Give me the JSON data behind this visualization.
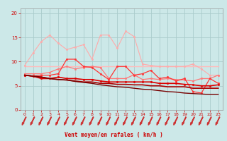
{
  "xlabel": "Vent moyen/en rafales ( km/h )",
  "background_color": "#cce8e8",
  "grid_color": "#aacccc",
  "x": [
    0,
    1,
    2,
    3,
    4,
    5,
    6,
    7,
    8,
    9,
    10,
    11,
    12,
    13,
    14,
    15,
    16,
    17,
    18,
    19,
    20,
    21,
    22,
    23
  ],
  "series": [
    {
      "y": [
        9.0,
        9.0,
        9.0,
        9.0,
        9.0,
        9.0,
        9.0,
        9.0,
        9.0,
        9.0,
        9.0,
        9.0,
        9.0,
        9.0,
        9.0,
        9.0,
        9.0,
        9.0,
        9.0,
        9.0,
        9.0,
        9.0,
        9.0,
        9.0
      ],
      "color": "#ffbbbb",
      "lw": 1.0,
      "marker": null
    },
    {
      "y": [
        9.2,
        11.8,
        14.2,
        15.5,
        13.8,
        12.5,
        13.0,
        13.5,
        10.5,
        15.5,
        15.5,
        12.8,
        16.3,
        15.2,
        9.5,
        9.2,
        9.0,
        9.0,
        9.0,
        9.0,
        9.5,
        8.5,
        7.2,
        7.2
      ],
      "color": "#ffaaaa",
      "lw": 0.8,
      "marker": "o",
      "markersize": 1.8
    },
    {
      "y": [
        7.5,
        7.5,
        7.5,
        7.8,
        8.5,
        9.0,
        8.5,
        8.8,
        9.0,
        8.8,
        6.5,
        6.5,
        6.5,
        7.3,
        6.3,
        6.5,
        6.3,
        6.5,
        6.3,
        6.2,
        6.0,
        6.5,
        6.5,
        7.2
      ],
      "color": "#ff7777",
      "lw": 0.9,
      "marker": "o",
      "markersize": 1.8
    },
    {
      "y": [
        7.2,
        7.0,
        7.2,
        7.2,
        7.5,
        10.5,
        10.5,
        9.0,
        8.8,
        7.5,
        6.3,
        9.0,
        9.0,
        7.2,
        7.5,
        8.2,
        6.5,
        6.8,
        6.0,
        6.5,
        3.8,
        3.5,
        6.5,
        5.5
      ],
      "color": "#ff3333",
      "lw": 0.9,
      "marker": "o",
      "markersize": 1.8
    },
    {
      "y": [
        7.2,
        7.0,
        6.5,
        6.5,
        6.8,
        6.5,
        6.5,
        6.3,
        6.3,
        6.0,
        5.8,
        5.8,
        5.8,
        5.8,
        5.8,
        5.8,
        5.5,
        5.5,
        5.5,
        5.3,
        5.2,
        5.0,
        5.0,
        5.2
      ],
      "color": "#dd0000",
      "lw": 1.2,
      "marker": "o",
      "markersize": 1.8
    },
    {
      "y": [
        7.2,
        7.0,
        6.8,
        6.5,
        6.3,
        6.2,
        6.0,
        5.8,
        5.8,
        5.5,
        5.5,
        5.3,
        5.3,
        5.2,
        5.2,
        5.0,
        5.0,
        4.8,
        4.8,
        4.8,
        4.5,
        4.5,
        4.5,
        4.5
      ],
      "color": "#aa0000",
      "lw": 1.2,
      "marker": null
    },
    {
      "y": [
        7.2,
        7.0,
        6.8,
        6.5,
        6.3,
        6.2,
        5.9,
        5.7,
        5.5,
        5.2,
        5.0,
        4.8,
        4.7,
        4.5,
        4.3,
        4.2,
        4.0,
        3.8,
        3.7,
        3.5,
        3.4,
        3.3,
        3.2,
        3.2
      ],
      "color": "#770000",
      "lw": 1.0,
      "marker": null
    }
  ],
  "arrow_color": "#cc3333",
  "ylim": [
    0,
    21
  ],
  "xlim": [
    -0.5,
    23.5
  ],
  "yticks": [
    0,
    5,
    10,
    15,
    20
  ],
  "xticks": [
    0,
    1,
    2,
    3,
    4,
    5,
    6,
    7,
    8,
    9,
    10,
    11,
    12,
    13,
    14,
    15,
    16,
    17,
    18,
    19,
    20,
    21,
    22,
    23
  ]
}
